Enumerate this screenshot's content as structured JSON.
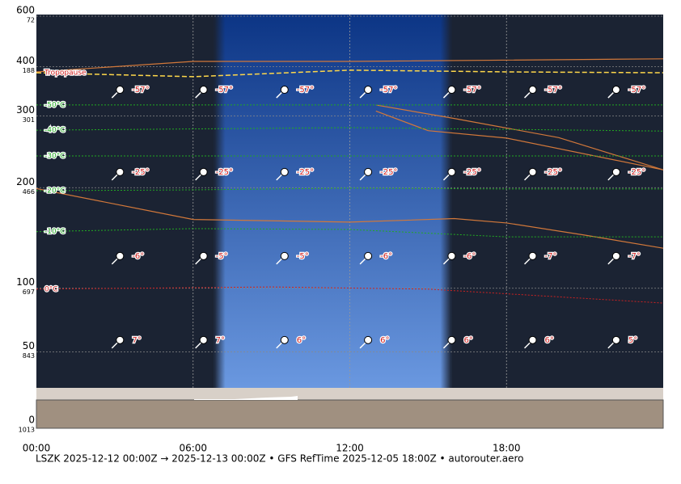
{
  "chart_data": {
    "type": "meteogram",
    "footer": "LSZK 2025-12-12 00:00Z → 2025-12-13 00:00Z • GFS RefTime 2025-12-05 18:00Z • autorouter.aero",
    "xlim": [
      0,
      24
    ],
    "xticks": [
      {
        "value": 0,
        "label": "00:00"
      },
      {
        "value": 6,
        "label": "06:00"
      },
      {
        "value": 12,
        "label": "12:00"
      },
      {
        "value": 18,
        "label": "18:00"
      }
    ],
    "ylim": [
      72,
      1013
    ],
    "yticks": [
      72,
      188,
      301,
      466,
      697,
      843,
      1013
    ],
    "altitude_labels": [
      "600",
      "400",
      "300",
      "200",
      "100",
      "50",
      "0"
    ],
    "daylight": [
      6.8,
      15.9
    ],
    "isotherms": [
      {
        "name": "-50°C",
        "color": "#22aa22",
        "x": [
          0,
          12,
          24
        ],
        "values": [
          276,
          276,
          276
        ]
      },
      {
        "name": "-40°C",
        "color": "#22aa22",
        "x": [
          0,
          12,
          24
        ],
        "values": [
          334,
          328,
          336
        ]
      },
      {
        "name": "-30°C",
        "color": "#22aa22",
        "x": [
          0,
          12,
          24
        ],
        "values": [
          393,
          393,
          393
        ]
      },
      {
        "name": "-20°C",
        "color": "#22aa22",
        "x": [
          0,
          6,
          12,
          18,
          24
        ],
        "values": [
          473,
          471,
          467,
          469,
          469
        ]
      },
      {
        "name": "-10°C",
        "color": "#22aa22",
        "x": [
          0,
          6,
          12,
          18,
          24
        ],
        "values": [
          567,
          560,
          562,
          579,
          579
        ]
      },
      {
        "name": "0°C",
        "color": "#cc2222",
        "x": [
          0,
          9,
          15,
          24
        ],
        "values": [
          699,
          694,
          699,
          731
        ]
      }
    ],
    "tropopause": {
      "name": "Tropopause",
      "color": "#ffd84a",
      "x": [
        0,
        6,
        12,
        18,
        24
      ],
      "values": [
        202,
        211,
        196,
        200,
        202
      ]
    },
    "cloud_lines": [
      {
        "color": "#d2783a",
        "x": [
          0,
          6,
          12,
          16,
          18,
          21,
          24
        ],
        "values": [
          468,
          539,
          545,
          537,
          547,
          575,
          605
        ]
      },
      {
        "color": "#d2783a",
        "x": [
          0,
          6,
          12,
          24
        ],
        "values": [
          200,
          176,
          176,
          170
        ]
      },
      {
        "color": "#d2783a",
        "x": [
          13,
          16,
          20,
          24
        ],
        "values": [
          276,
          307,
          351,
          425
        ]
      },
      {
        "color": "#d2783a",
        "x": [
          13,
          15,
          18,
          24
        ],
        "values": [
          290,
          335,
          352,
          425
        ]
      }
    ],
    "stations": {
      "hours": [
        3.2,
        6.4,
        9.5,
        12.7,
        15.9,
        19.0,
        22.2
      ],
      "levels": [
        {
          "pressure": 241,
          "values": [
            -57,
            -57,
            -57,
            -57,
            -57,
            -57,
            -57
          ],
          "value_labels": [
            "-57°",
            "-57°",
            "-57°",
            "-57°",
            "-57°",
            "-57°",
            "-57°"
          ]
        },
        {
          "pressure": 430,
          "values": [
            -25,
            -25,
            -25,
            -25,
            -25,
            -25,
            -25
          ],
          "value_labels": [
            "-25°",
            "-25°",
            "-25°",
            "-25°",
            "-25°",
            "-25°",
            "-25°"
          ]
        },
        {
          "pressure": 623,
          "values": [
            -6,
            -5,
            -5,
            -6,
            -6,
            -7,
            -7
          ],
          "value_labels": [
            "-6°",
            "-5°",
            "-5°",
            "-6°",
            "-6°",
            "-7°",
            "-7°"
          ]
        },
        {
          "pressure": 816,
          "values": [
            7,
            7,
            6,
            6,
            6,
            6,
            5
          ],
          "value_labels": [
            "7°",
            "7°",
            "6°",
            "6°",
            "6°",
            "6°",
            "5°"
          ]
        }
      ]
    }
  }
}
